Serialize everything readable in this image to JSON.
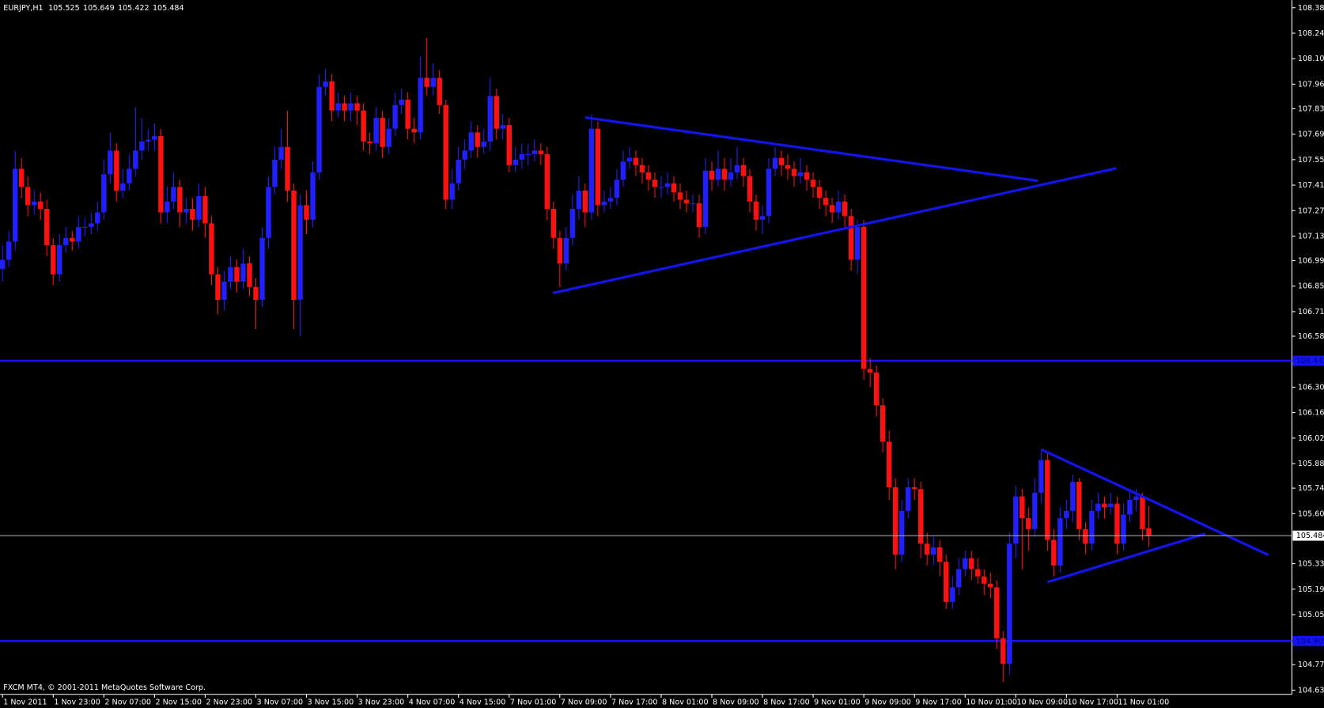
{
  "chart_data": {
    "type": "candlestick",
    "symbol": "EURJPY,H1",
    "copyright": "FXCM MT4, © 2001-2011 MetaQuotes Software Corp.",
    "up_color": "#1f1fff",
    "down_color": "#ff1010",
    "line_color": "#1414f0",
    "price_line_color": "#b4b4b4",
    "ylim": [
      104.612,
      108.422
    ],
    "yticks": [
      108.385,
      108.245,
      108.105,
      107.965,
      {
        "value": 107.83,
        "label": "107.830"
      },
      {
        "value": 107.69,
        "label": "107.690"
      },
      {
        "value": 107.55,
        "label": "107.550"
      },
      {
        "value": 107.41,
        "label": "107.410"
      },
      {
        "value": 107.27,
        "label": "107.270"
      },
      {
        "value": 107.13,
        "label": "107.130"
      },
      106.995,
      106.855,
      106.715,
      {
        "value": 106.58,
        "label": "106.580"
      },
      {
        "value": 106.3,
        "label": "106.300"
      },
      {
        "value": 106.16,
        "label": "106.160"
      },
      {
        "value": 106.02,
        "label": "106.020"
      },
      {
        "value": 105.88,
        "label": "105.880"
      },
      105.745,
      105.605,
      {
        "value": 105.33,
        "label": "105.330"
      },
      {
        "value": 105.19,
        "label": "105.190"
      },
      {
        "value": 105.05,
        "label": "105.050"
      },
      104.775,
      104.635
    ],
    "hlines": [
      106.445,
      104.905
    ],
    "trendlines": [
      {
        "x": [
          92,
          163.5
        ],
        "y": [
          107.782,
          107.434
        ]
      },
      {
        "x": [
          86.9,
          175.9
        ],
        "y": [
          106.817,
          107.503
        ]
      },
      {
        "x": [
          164,
          199.9
        ],
        "y": [
          105.958,
          105.378
        ]
      },
      {
        "x": [
          165,
          189.9
        ],
        "y": [
          105.229,
          105.494
        ]
      }
    ],
    "categories": [
      "1 Nov 2011",
      null,
      null,
      null,
      null,
      null,
      null,
      null,
      "1 Nov 23:00",
      null,
      null,
      null,
      null,
      null,
      null,
      null,
      "2 Nov 07:00",
      null,
      null,
      null,
      null,
      null,
      null,
      null,
      "2 Nov 15:00",
      null,
      null,
      null,
      null,
      null,
      null,
      null,
      "2 Nov 23:00",
      null,
      null,
      null,
      null,
      null,
      null,
      null,
      "3 Nov 07:00",
      null,
      null,
      null,
      null,
      null,
      null,
      null,
      "3 Nov 15:00",
      null,
      null,
      null,
      null,
      null,
      null,
      null,
      "3 Nov 23:00",
      null,
      null,
      null,
      null,
      null,
      null,
      null,
      "4 Nov 07:00",
      null,
      null,
      null,
      null,
      null,
      null,
      null,
      "4 Nov 15:00",
      null,
      null,
      null,
      null,
      null,
      null,
      null,
      "7 Nov 01:00",
      null,
      null,
      null,
      null,
      null,
      null,
      null,
      "7 Nov 09:00",
      null,
      null,
      null,
      null,
      null,
      null,
      null,
      "7 Nov 17:00",
      null,
      null,
      null,
      null,
      null,
      null,
      null,
      "8 Nov 01:00",
      null,
      null,
      null,
      null,
      null,
      null,
      null,
      "8 Nov 09:00",
      null,
      null,
      null,
      null,
      null,
      null,
      null,
      "8 Nov 17:00",
      null,
      null,
      null,
      null,
      null,
      null,
      null,
      "9 Nov 01:00",
      null,
      null,
      null,
      null,
      null,
      null,
      null,
      "9 Nov 09:00",
      null,
      null,
      null,
      null,
      null,
      null,
      null,
      "9 Nov 17:00",
      null,
      null,
      null,
      null,
      null,
      null,
      null,
      "10 Nov 01:00",
      null,
      null,
      null,
      null,
      null,
      null,
      null,
      "10 Nov 09:00",
      null,
      null,
      null,
      null,
      null,
      null,
      null,
      "10 Nov 17:00",
      null,
      null,
      null,
      null,
      null,
      null,
      null,
      "11 Nov 01:00",
      null,
      null,
      null,
      null,
      null
    ],
    "open": [
      106.95,
      107.0,
      107.1,
      107.5,
      107.4,
      107.3,
      107.32,
      107.28,
      107.08,
      106.92,
      107.08,
      107.12,
      107.1,
      107.18,
      107.18,
      107.2,
      107.26,
      107.47,
      107.6,
      107.38,
      107.42,
      107.5,
      107.6,
      107.65,
      107.66,
      107.68,
      107.26,
      107.32,
      107.4,
      107.26,
      107.28,
      107.22,
      107.35,
      107.2,
      106.92,
      106.78,
      106.88,
      106.96,
      106.88,
      106.98,
      106.85,
      106.78,
      107.12,
      107.4,
      107.55,
      107.62,
      107.38,
      106.78,
      107.3,
      107.22,
      107.48,
      107.95,
      107.98,
      107.82,
      107.86,
      107.82,
      107.86,
      107.82,
      107.65,
      107.64,
      107.78,
      107.62,
      107.72,
      107.85,
      107.88,
      107.72,
      107.7,
      108.0,
      107.95,
      108.0,
      107.85,
      107.33,
      107.42,
      107.55,
      107.6,
      107.7,
      107.62,
      107.65,
      107.9,
      107.72,
      107.74,
      107.52,
      107.55,
      107.58,
      107.58,
      107.6,
      107.58,
      107.28,
      107.12,
      106.98,
      107.12,
      107.28,
      107.38,
      107.26,
      107.72,
      107.3,
      107.32,
      107.34,
      107.44,
      107.54,
      107.56,
      107.52,
      107.48,
      107.44,
      107.4,
      107.4,
      107.42,
      107.37,
      107.33,
      107.31,
      107.31,
      107.18,
      107.49,
      107.44,
      107.5,
      107.44,
      107.48,
      107.52,
      107.46,
      107.32,
      107.22,
      107.24,
      107.5,
      107.56,
      107.52,
      107.5,
      107.46,
      107.48,
      107.44,
      107.4,
      107.34,
      107.3,
      107.26,
      107.32,
      107.24,
      107.0,
      107.18,
      106.4,
      106.38,
      106.2,
      106.0,
      105.75,
      105.38,
      105.62,
      105.75,
      105.74,
      105.44,
      105.38,
      105.42,
      105.34,
      105.12,
      105.2,
      105.3,
      105.36,
      105.3,
      105.26,
      105.22,
      105.2,
      104.92,
      104.78,
      105.44,
      105.7,
      105.58,
      105.52,
      105.72,
      105.9,
      105.46,
      105.32,
      105.58,
      105.62,
      105.78,
      105.52,
      105.44,
      105.62,
      105.66,
      105.64,
      105.66,
      105.44,
      105.6,
      105.68,
      105.7,
      105.525
    ],
    "high": [
      107.08,
      107.16,
      107.6,
      107.56,
      107.46,
      107.38,
      107.37,
      107.33,
      107.12,
      107.14,
      107.18,
      107.16,
      107.24,
      107.23,
      107.26,
      107.32,
      107.55,
      107.7,
      107.64,
      107.5,
      107.58,
      107.84,
      107.78,
      107.72,
      107.75,
      107.72,
      107.4,
      107.48,
      107.44,
      107.34,
      107.34,
      107.42,
      107.4,
      107.24,
      106.96,
      106.94,
      107.02,
      107.0,
      107.06,
      107.02,
      106.9,
      107.18,
      107.46,
      107.62,
      107.72,
      107.82,
      107.42,
      107.36,
      107.38,
      107.54,
      108.02,
      108.05,
      108.02,
      107.92,
      107.9,
      107.92,
      107.9,
      107.86,
      107.7,
      107.84,
      107.82,
      107.78,
      107.92,
      107.94,
      107.92,
      107.78,
      108.12,
      108.22,
      108.08,
      108.04,
      107.88,
      107.5,
      107.62,
      107.66,
      107.76,
      107.74,
      107.72,
      108.0,
      107.94,
      107.8,
      107.78,
      107.62,
      107.64,
      107.64,
      107.66,
      107.64,
      107.62,
      107.32,
      107.16,
      107.18,
      107.36,
      107.46,
      107.42,
      107.8,
      107.76,
      107.38,
      107.4,
      107.5,
      107.6,
      107.62,
      107.6,
      107.56,
      107.52,
      107.48,
      107.46,
      107.48,
      107.46,
      107.42,
      107.38,
      107.36,
      107.36,
      107.56,
      107.54,
      107.6,
      107.56,
      107.56,
      107.62,
      107.56,
      107.5,
      107.36,
      107.3,
      107.56,
      107.62,
      107.6,
      107.58,
      107.54,
      107.56,
      107.52,
      107.48,
      107.44,
      107.38,
      107.34,
      107.38,
      107.36,
      107.28,
      107.22,
      107.22,
      106.46,
      106.42,
      106.24,
      106.06,
      105.8,
      105.68,
      105.8,
      105.8,
      105.78,
      105.5,
      105.48,
      105.46,
      105.38,
      105.26,
      105.36,
      105.4,
      105.4,
      105.36,
      105.3,
      105.28,
      105.24,
      104.96,
      105.5,
      105.76,
      105.74,
      105.64,
      105.8,
      105.95,
      105.94,
      105.52,
      105.64,
      105.68,
      105.82,
      105.8,
      105.56,
      105.68,
      105.72,
      105.7,
      105.72,
      105.7,
      105.66,
      105.74,
      105.74,
      105.72,
      105.649
    ],
    "low": [
      106.88,
      106.96,
      107.05,
      107.34,
      107.24,
      107.25,
      107.22,
      107.02,
      106.86,
      106.88,
      107.04,
      107.05,
      107.06,
      107.13,
      107.14,
      107.16,
      107.22,
      107.42,
      107.32,
      107.34,
      107.38,
      107.46,
      107.55,
      107.6,
      107.6,
      107.2,
      107.2,
      107.28,
      107.18,
      107.2,
      107.16,
      107.18,
      107.12,
      106.86,
      106.7,
      106.72,
      106.84,
      106.82,
      106.84,
      106.8,
      106.62,
      106.74,
      107.06,
      107.36,
      107.5,
      107.32,
      106.62,
      106.58,
      107.14,
      107.18,
      107.44,
      107.9,
      107.76,
      107.78,
      107.76,
      107.76,
      107.74,
      107.6,
      107.58,
      107.6,
      107.56,
      107.58,
      107.68,
      107.8,
      107.66,
      107.64,
      107.66,
      107.9,
      107.9,
      107.8,
      107.28,
      107.28,
      107.38,
      107.5,
      107.56,
      107.56,
      107.58,
      107.6,
      107.66,
      107.66,
      107.48,
      107.48,
      107.5,
      107.52,
      107.54,
      107.52,
      107.22,
      107.06,
      106.85,
      106.94,
      107.08,
      107.22,
      107.18,
      107.22,
      107.24,
      107.26,
      107.28,
      107.3,
      107.4,
      107.5,
      107.46,
      107.42,
      107.38,
      107.34,
      107.34,
      107.36,
      107.32,
      107.28,
      107.26,
      107.26,
      107.12,
      107.14,
      107.38,
      107.4,
      107.38,
      107.4,
      107.44,
      107.4,
      107.26,
      107.16,
      107.14,
      107.2,
      107.46,
      107.46,
      107.44,
      107.4,
      107.42,
      107.38,
      107.34,
      107.28,
      107.24,
      107.2,
      107.22,
      107.18,
      106.94,
      106.92,
      106.34,
      106.3,
      106.14,
      105.94,
      105.68,
      105.3,
      105.34,
      105.58,
      105.68,
      105.36,
      105.32,
      105.32,
      105.26,
      105.08,
      105.08,
      105.16,
      105.26,
      105.24,
      105.22,
      105.16,
      105.14,
      104.86,
      104.68,
      104.72,
      105.36,
      105.3,
      105.4,
      105.48,
      105.66,
      105.4,
      105.26,
      105.28,
      105.52,
      105.56,
      105.46,
      105.38,
      105.4,
      105.58,
      105.58,
      105.6,
      105.38,
      105.4,
      105.56,
      105.62,
      105.46,
      105.422
    ],
    "close": [
      107.0,
      107.1,
      107.5,
      107.4,
      107.3,
      107.32,
      107.28,
      107.08,
      106.92,
      107.08,
      107.12,
      107.1,
      107.18,
      107.18,
      107.2,
      107.26,
      107.47,
      107.6,
      107.38,
      107.42,
      107.5,
      107.6,
      107.65,
      107.66,
      107.68,
      107.26,
      107.32,
      107.4,
      107.26,
      107.28,
      107.22,
      107.35,
      107.2,
      106.92,
      106.78,
      106.88,
      106.96,
      106.88,
      106.98,
      106.85,
      106.78,
      107.12,
      107.4,
      107.55,
      107.62,
      107.38,
      106.78,
      107.3,
      107.22,
      107.48,
      107.95,
      107.98,
      107.82,
      107.86,
      107.82,
      107.86,
      107.82,
      107.65,
      107.64,
      107.78,
      107.62,
      107.72,
      107.85,
      107.88,
      107.72,
      107.7,
      108.0,
      107.95,
      108.0,
      107.85,
      107.33,
      107.42,
      107.55,
      107.6,
      107.7,
      107.62,
      107.65,
      107.9,
      107.72,
      107.74,
      107.52,
      107.55,
      107.58,
      107.58,
      107.6,
      107.58,
      107.28,
      107.12,
      106.98,
      107.12,
      107.28,
      107.38,
      107.26,
      107.72,
      107.3,
      107.32,
      107.34,
      107.44,
      107.54,
      107.56,
      107.52,
      107.48,
      107.44,
      107.4,
      107.4,
      107.42,
      107.37,
      107.33,
      107.31,
      107.31,
      107.18,
      107.49,
      107.44,
      107.5,
      107.44,
      107.48,
      107.52,
      107.46,
      107.32,
      107.22,
      107.24,
      107.5,
      107.56,
      107.52,
      107.5,
      107.46,
      107.48,
      107.44,
      107.4,
      107.34,
      107.3,
      107.26,
      107.32,
      107.24,
      107.0,
      107.18,
      106.4,
      106.38,
      106.2,
      106.0,
      105.75,
      105.38,
      105.62,
      105.75,
      105.74,
      105.44,
      105.38,
      105.42,
      105.34,
      105.12,
      105.2,
      105.3,
      105.36,
      105.3,
      105.26,
      105.22,
      105.2,
      104.92,
      104.78,
      105.44,
      105.7,
      105.58,
      105.52,
      105.72,
      105.9,
      105.46,
      105.32,
      105.58,
      105.62,
      105.78,
      105.52,
      105.44,
      105.62,
      105.66,
      105.64,
      105.66,
      105.44,
      105.6,
      105.68,
      105.7,
      105.52,
      105.484
    ]
  }
}
